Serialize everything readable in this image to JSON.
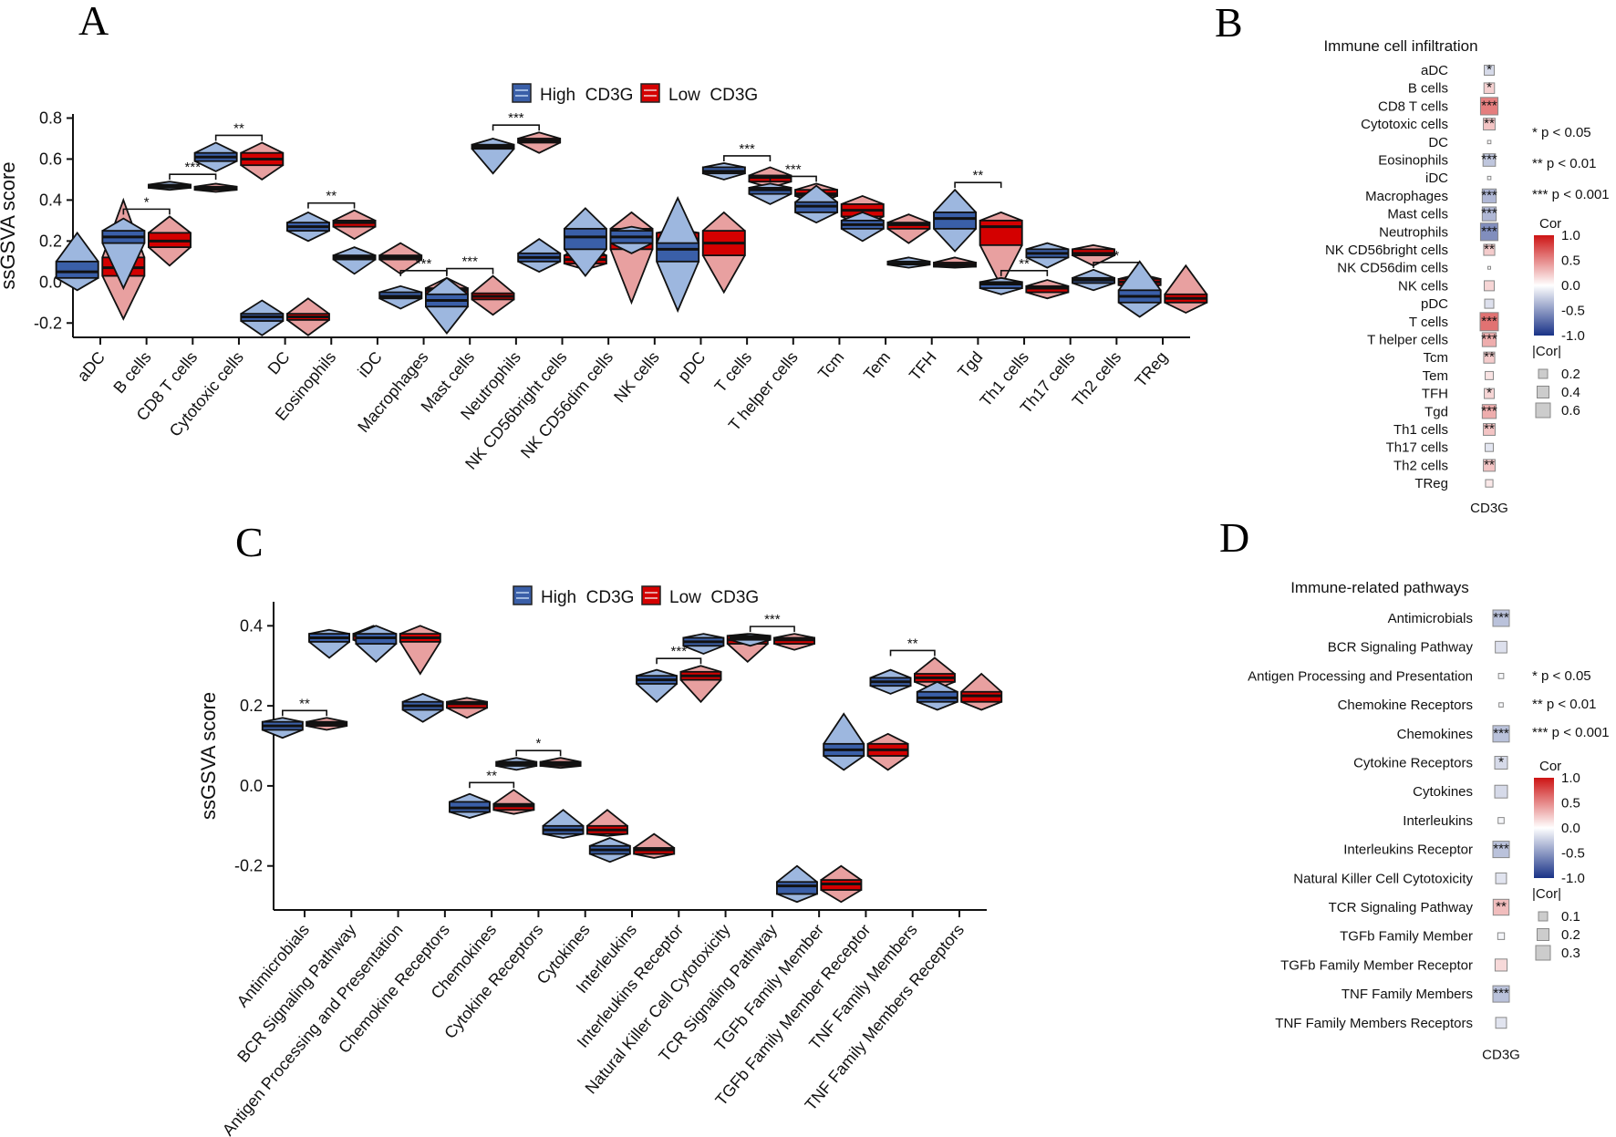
{
  "panels": {
    "A": "A",
    "B": "B",
    "C": "C",
    "D": "D"
  },
  "legend": {
    "high": "High  CD3G",
    "low": "Low  CD3G",
    "high_color": "#3a5fa8",
    "low_color": "#d40000",
    "high_light": "#9db7df",
    "low_light": "#e8a0a0"
  },
  "chart_data": [
    {
      "id": "A",
      "type": "violin-box",
      "title": "",
      "xlabel": "",
      "ylabel": "ssGSVA score",
      "ylim": [
        -0.27,
        0.82
      ],
      "yticks": [
        -0.2,
        0.0,
        0.2,
        0.4,
        0.6,
        0.8
      ],
      "ytick_labels": [
        "-0.2",
        "0.0",
        "0.2",
        "0.4",
        "0.6",
        "0.8"
      ],
      "categories": [
        "aDC",
        "B cells",
        "CD8 T cells",
        "Cytotoxic cells",
        "DC",
        "Eosinophils",
        "iDC",
        "Macrophages",
        "Mast cells",
        "Neutrophils",
        "NK CD56bright cells",
        "NK CD56dim cells",
        "NK cells",
        "pDC",
        "T cells",
        "T helper cells",
        "Tcm",
        "Tem",
        "TFH",
        "Tgd",
        "Th1 cells",
        "Th17 cells",
        "Th2 cells",
        "TReg"
      ],
      "series": [
        {
          "name": "High  CD3G",
          "median": [
            0.05,
            0.22,
            0.47,
            0.61,
            -0.17,
            0.27,
            0.12,
            -0.07,
            -0.09,
            0.66,
            0.12,
            0.22,
            0.22,
            0.16,
            0.54,
            0.45,
            0.37,
            0.28,
            0.09,
            0.31,
            -0.01,
            0.14,
            0.01,
            -0.07
          ],
          "q1": [
            0.02,
            0.19,
            0.46,
            0.59,
            -0.19,
            0.25,
            0.11,
            -0.08,
            -0.12,
            0.65,
            0.1,
            0.16,
            0.19,
            0.1,
            0.53,
            0.43,
            0.34,
            0.26,
            0.085,
            0.26,
            -0.03,
            0.12,
            -0.005,
            -0.1
          ],
          "q3": [
            0.1,
            0.25,
            0.475,
            0.63,
            -0.155,
            0.29,
            0.13,
            -0.05,
            -0.06,
            0.67,
            0.14,
            0.26,
            0.25,
            0.19,
            0.56,
            0.46,
            0.39,
            0.3,
            0.1,
            0.34,
            0.0,
            0.16,
            0.02,
            -0.04
          ],
          "min": [
            -0.04,
            -0.03,
            0.45,
            0.54,
            -0.26,
            0.2,
            0.04,
            -0.13,
            -0.25,
            0.53,
            0.05,
            0.03,
            0.14,
            -0.14,
            0.5,
            0.38,
            0.29,
            0.2,
            0.07,
            0.15,
            -0.06,
            0.07,
            -0.04,
            -0.17
          ],
          "max": [
            0.24,
            0.31,
            0.49,
            0.68,
            -0.09,
            0.34,
            0.17,
            -0.02,
            0.02,
            0.7,
            0.21,
            0.36,
            0.27,
            0.41,
            0.58,
            0.48,
            0.47,
            0.34,
            0.12,
            0.45,
            0.02,
            0.19,
            0.06,
            0.1
          ]
        },
        {
          "name": "Low  CD3G",
          "median": [
            0.07,
            0.2,
            0.455,
            0.6,
            -0.17,
            0.29,
            0.12,
            -0.04,
            -0.07,
            0.69,
            0.11,
            0.22,
            0.21,
            0.19,
            0.51,
            0.43,
            0.35,
            0.28,
            0.085,
            0.27,
            -0.03,
            0.14,
            0.0,
            -0.08
          ],
          "q1": [
            0.03,
            0.17,
            0.45,
            0.57,
            -0.185,
            0.27,
            0.11,
            -0.06,
            -0.085,
            0.68,
            0.09,
            0.16,
            0.19,
            0.13,
            0.49,
            0.42,
            0.32,
            0.26,
            0.075,
            0.18,
            -0.05,
            0.13,
            -0.015,
            -0.1
          ],
          "q3": [
            0.12,
            0.24,
            0.465,
            0.63,
            -0.155,
            0.3,
            0.13,
            -0.03,
            -0.055,
            0.7,
            0.13,
            0.26,
            0.24,
            0.25,
            0.52,
            0.45,
            0.38,
            0.29,
            0.095,
            0.3,
            -0.02,
            0.16,
            0.015,
            -0.06
          ],
          "min": [
            -0.18,
            0.08,
            0.44,
            0.5,
            -0.26,
            0.21,
            0.04,
            -0.15,
            -0.16,
            0.63,
            0.06,
            -0.1,
            0.15,
            -0.05,
            0.46,
            0.38,
            0.27,
            0.19,
            0.07,
            -0.02,
            -0.08,
            0.08,
            -0.03,
            -0.15
          ],
          "max": [
            0.4,
            0.32,
            0.48,
            0.68,
            -0.08,
            0.35,
            0.19,
            0.02,
            0.03,
            0.73,
            0.19,
            0.34,
            0.26,
            0.34,
            0.56,
            0.48,
            0.42,
            0.33,
            0.12,
            0.34,
            0.01,
            0.18,
            0.04,
            0.08
          ]
        }
      ],
      "significance": [
        "",
        "*",
        "***",
        "**",
        "",
        "**",
        "",
        "***",
        "***",
        "***",
        "",
        "",
        "",
        "",
        "***",
        "***",
        "",
        "",
        "",
        "**",
        "**",
        "",
        "*",
        ""
      ]
    },
    {
      "id": "C",
      "type": "violin-box",
      "title": "",
      "xlabel": "",
      "ylabel": "ssGSVA score",
      "ylim": [
        -0.31,
        0.46
      ],
      "yticks": [
        -0.2,
        0.0,
        0.2,
        0.4
      ],
      "ytick_labels": [
        "-0.2",
        "0.0",
        "0.2",
        "0.4"
      ],
      "categories": [
        "Antimicrobials",
        "BCR Signaling Pathway",
        "Antigen Processing and Presentation",
        "Chemokine Receptors",
        "Chemokines",
        "Cytokine Receptors",
        "Cytokines",
        "Interleukins",
        "Interleukins Receptor",
        "Natural Killer Cell Cytotoxicity",
        "TCR Signaling Pathway",
        "TGFb Family Member",
        "TGFb Family Member Receptor",
        "TNF Family Members",
        "TNF Family Members Receptors"
      ],
      "series": [
        {
          "name": "High  CD3G",
          "median": [
            0.15,
            0.37,
            0.37,
            0.2,
            -0.055,
            0.055,
            -0.11,
            -0.16,
            0.265,
            0.36,
            0.37,
            -0.25,
            0.09,
            0.26,
            0.22
          ],
          "q1": [
            0.14,
            0.36,
            0.355,
            0.19,
            -0.065,
            0.05,
            -0.12,
            -0.17,
            0.255,
            0.35,
            0.365,
            -0.27,
            0.075,
            0.25,
            0.21
          ],
          "q3": [
            0.16,
            0.38,
            0.38,
            0.21,
            -0.04,
            0.06,
            -0.1,
            -0.15,
            0.275,
            0.37,
            0.375,
            -0.24,
            0.105,
            0.27,
            0.235
          ],
          "min": [
            0.12,
            0.32,
            0.31,
            0.16,
            -0.08,
            0.04,
            -0.13,
            -0.19,
            0.21,
            0.33,
            0.35,
            -0.29,
            0.04,
            0.23,
            0.19
          ],
          "max": [
            0.17,
            0.39,
            0.4,
            0.23,
            -0.02,
            0.07,
            -0.06,
            -0.13,
            0.29,
            0.38,
            0.38,
            -0.2,
            0.18,
            0.29,
            0.26
          ]
        },
        {
          "name": "Low  CD3G",
          "median": [
            0.155,
            0.375,
            0.37,
            0.205,
            -0.05,
            0.055,
            -0.11,
            -0.16,
            0.275,
            0.365,
            0.365,
            -0.245,
            0.09,
            0.27,
            0.225
          ],
          "q1": [
            0.15,
            0.365,
            0.36,
            0.195,
            -0.06,
            0.05,
            -0.12,
            -0.17,
            0.265,
            0.355,
            0.355,
            -0.26,
            0.075,
            0.26,
            0.21
          ],
          "q3": [
            0.16,
            0.38,
            0.38,
            0.21,
            -0.045,
            0.06,
            -0.1,
            -0.155,
            0.285,
            0.375,
            0.37,
            -0.235,
            0.105,
            0.28,
            0.235
          ],
          "min": [
            0.14,
            0.34,
            0.28,
            0.17,
            -0.07,
            0.045,
            -0.125,
            -0.18,
            0.21,
            0.31,
            0.34,
            -0.29,
            0.04,
            0.24,
            0.19
          ],
          "max": [
            0.17,
            0.4,
            0.4,
            0.22,
            -0.01,
            0.07,
            -0.06,
            -0.12,
            0.3,
            0.38,
            0.38,
            -0.2,
            0.13,
            0.32,
            0.28
          ]
        }
      ],
      "significance": [
        "**",
        "",
        "",
        "",
        "**",
        "*",
        "",
        "",
        "***",
        "",
        "***",
        "",
        "",
        "**",
        ""
      ]
    },
    {
      "id": "B",
      "type": "heatmap",
      "title": "Immune cell infiltration",
      "xlabel": "CD3G",
      "rows": [
        "aDC",
        "B cells",
        "CD8 T cells",
        "Cytotoxic cells",
        "DC",
        "Eosinophils",
        "iDC",
        "Macrophages",
        "Mast cells",
        "Neutrophils",
        "NK CD56bright cells",
        "NK CD56dim cells",
        "NK cells",
        "pDC",
        "T cells",
        "T helper cells",
        "Tcm",
        "Tem",
        "TFH",
        "Tgd",
        "Th1 cells",
        "Th17 cells",
        "Th2 cells",
        "TReg"
      ],
      "cor": [
        -0.18,
        0.2,
        0.55,
        0.25,
        0.02,
        -0.28,
        -0.02,
        -0.35,
        -0.35,
        -0.55,
        0.22,
        0.01,
        0.18,
        -0.15,
        0.6,
        0.35,
        0.22,
        0.12,
        0.18,
        0.35,
        0.25,
        -0.12,
        0.25,
        0.1
      ],
      "significance": [
        "*",
        "*",
        "***",
        "**",
        "",
        "***",
        "",
        "***",
        "***",
        "***",
        "**",
        "",
        "",
        "",
        "***",
        "***",
        "**",
        "",
        "*",
        "***",
        "**",
        "",
        "**",
        ""
      ],
      "p_legend": [
        "* p < 0.05",
        "** p < 0.01",
        "*** p < 0.001"
      ],
      "color_legend_title": "Cor",
      "color_ticks": [
        "1.0",
        "0.5",
        "0.0",
        "-0.5",
        "-1.0"
      ],
      "size_legend_title": "|Cor|",
      "size_ticks": [
        "0.2",
        "0.4",
        "0.6"
      ]
    },
    {
      "id": "D",
      "type": "heatmap",
      "title": "Immune-related pathways",
      "xlabel": "CD3G",
      "rows": [
        "Antimicrobials",
        "BCR Signaling Pathway",
        "Antigen Processing and Presentation",
        "Chemokine Receptors",
        "Chemokines",
        "Cytokine Receptors",
        "Cytokines",
        "Interleukins",
        "Interleukins Receptor",
        "Natural Killer Cell Cytotoxicity",
        "TCR Signaling Pathway",
        "TGFb Family Member",
        "TGFb Family Member Receptor",
        "TNF Family Members",
        "TNF Family Members Receptors"
      ],
      "cor": [
        -0.3,
        -0.15,
        -0.03,
        -0.02,
        -0.3,
        -0.18,
        -0.18,
        -0.04,
        -0.3,
        -0.13,
        0.28,
        -0.05,
        0.16,
        -0.3,
        -0.13
      ],
      "significance": [
        "***",
        "",
        "",
        "",
        "***",
        "*",
        "",
        "",
        "***",
        "",
        "**",
        "",
        "",
        "***",
        ""
      ],
      "p_legend": [
        "* p < 0.05",
        "** p < 0.01",
        "*** p < 0.001"
      ],
      "color_legend_title": "Cor",
      "color_ticks": [
        "1.0",
        "0.5",
        "0.0",
        "-0.5",
        "-1.0"
      ],
      "size_legend_title": "|Cor|",
      "size_ticks": [
        "0.1",
        "0.2",
        "0.3"
      ]
    }
  ]
}
